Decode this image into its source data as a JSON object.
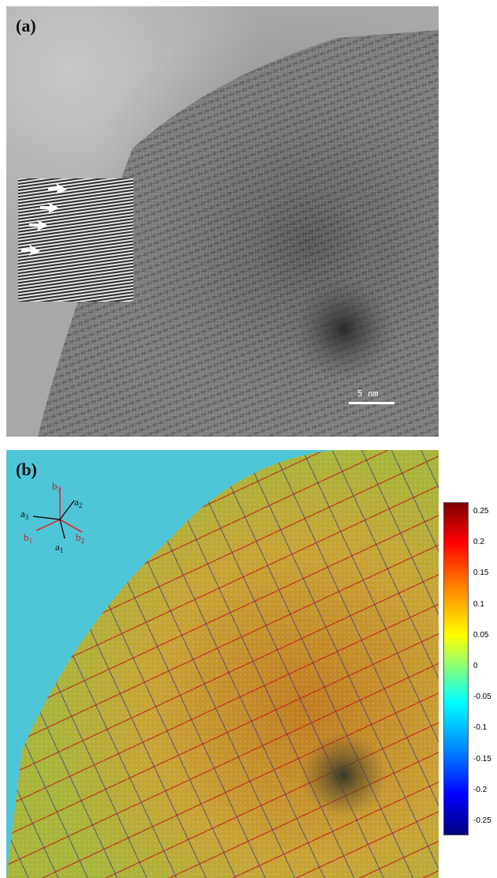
{
  "figure": {
    "panel_a": {
      "label": "(a)",
      "scale_bar_text": "5 nm"
    },
    "panel_b": {
      "label": "(b)",
      "lattice_vectors": {
        "b3": "b",
        "b3_sub": "3",
        "a2": "a",
        "a2_sub": "2",
        "a3": "a",
        "a3_sub": "3",
        "b1": "b",
        "b1_sub": "1",
        "b2": "b",
        "b2_sub": "2",
        "a1": "a",
        "a1_sub": "1"
      },
      "colorbar_ticks": [
        "0.25",
        "0.2",
        "0.15",
        "0.1",
        "0.05",
        "0",
        "-0.05",
        "-0.1",
        "-0.15",
        "-0.2",
        "-0.25"
      ],
      "colors": {
        "red_vector": "#e03030",
        "black_vector": "#111111"
      }
    }
  }
}
